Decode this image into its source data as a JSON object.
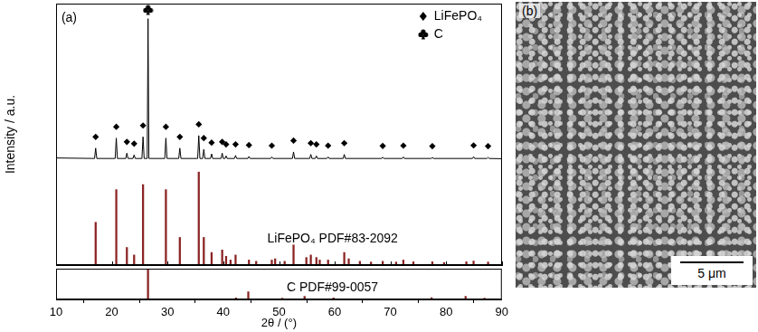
{
  "chart_data": [
    {
      "type": "line",
      "y_label": "Intensity / a.u.",
      "xlim": [
        10,
        90
      ],
      "xticks": [
        10,
        20,
        30,
        40,
        50,
        60,
        70,
        80,
        90
      ],
      "ylim": [
        0,
        104
      ],
      "tick_labels": false,
      "grid": false,
      "legend": "upper right",
      "annotations": [
        "(a)",
        "LiFePO₄ PDF#83-2092"
      ],
      "series": [
        {
          "type": "line",
          "color": "#000000",
          "x": [
            10,
            16.9,
            17.1,
            17.3,
            20.6,
            20.8,
            21.0,
            22.5,
            22.7,
            22.9,
            23.8,
            24.0,
            24.2,
            25.4,
            25.6,
            25.8,
            26.35,
            26.5,
            26.65,
            29.5,
            29.7,
            29.9,
            32.0,
            32.2,
            32.4,
            35.4,
            35.6,
            35.8,
            36.3,
            36.5,
            36.7,
            37.7,
            37.9,
            38.1,
            39.6,
            39.8,
            40.0,
            40.3,
            40.5,
            40.7,
            42.0,
            42.2,
            42.4,
            44.4,
            44.6,
            44.8,
            48.5,
            48.7,
            48.9,
            52.4,
            52.6,
            52.8,
            55.5,
            55.7,
            55.9,
            56.5,
            56.7,
            56.9,
            58.6,
            58.8,
            59.0,
            61.5,
            61.7,
            61.9,
            68.4,
            68.6,
            68.8,
            72.1,
            72.3,
            72.5,
            77.3,
            77.5,
            77.7,
            84.7,
            84.9,
            85.1,
            87.3,
            87.5,
            87.7,
            90
          ],
          "values": [
            42.6,
            42.4,
            46.5,
            42.4,
            42.4,
            50.5,
            42.4,
            42.4,
            44.5,
            42.4,
            42.4,
            43.8,
            42.4,
            42.4,
            51,
            42.4,
            42.4,
            98,
            42.4,
            42.4,
            50.5,
            42.4,
            42.4,
            46.5,
            42.4,
            42.4,
            51.5,
            42.4,
            42.4,
            46,
            42.4,
            42.4,
            44.2,
            42.4,
            42.4,
            44.5,
            42.4,
            42.4,
            43.4,
            42.4,
            42.4,
            43.6,
            42.4,
            42.4,
            43.2,
            42.4,
            42.4,
            43,
            42.4,
            42.4,
            45,
            42.4,
            42.4,
            44,
            42.4,
            42.4,
            43.4,
            42.4,
            42.4,
            43,
            42.4,
            42.4,
            44,
            42.4,
            42.4,
            42.9,
            42.4,
            42.4,
            43,
            42.4,
            42.4,
            42.8,
            42.4,
            42.4,
            43.1,
            42.4,
            42.4,
            42.8,
            42.4,
            42.3
          ]
        },
        {
          "name": "LiFePO₄",
          "type": "scatter",
          "marker": "diamond",
          "color": "#000000",
          "x": [
            17.1,
            20.8,
            22.7,
            24.0,
            25.6,
            29.7,
            32.2,
            35.6,
            36.5,
            37.9,
            39.8,
            40.5,
            42.2,
            44.6,
            48.7,
            52.6,
            55.7,
            56.7,
            58.8,
            61.7,
            68.6,
            72.3,
            77.5,
            84.9,
            87.5
          ],
          "values": [
            51,
            55,
            49,
            48.3,
            55.5,
            55,
            51,
            56,
            50.5,
            48.7,
            49,
            48,
            48,
            47.7,
            47.5,
            49.5,
            48.5,
            48,
            47.5,
            48.5,
            47.4,
            47.5,
            47.3,
            47.6,
            47.3
          ]
        },
        {
          "name": "C",
          "type": "scatter",
          "marker": "club",
          "color": "#000000",
          "x": [
            26.5
          ],
          "values": [
            101.5
          ]
        },
        {
          "type": "bar",
          "color": "#8b2323",
          "x": [
            17.1,
            20.8,
            22.7,
            24.0,
            25.6,
            29.7,
            32.2,
            35.6,
            36.5,
            37.9,
            39.8,
            40.5,
            41.3,
            42.2,
            44.6,
            45.9,
            48.7,
            49.3,
            51.0,
            52.6,
            54.9,
            55.7,
            56.7,
            57.3,
            58.8,
            61.7,
            62.5,
            64.5,
            66.5,
            68.6,
            71.0,
            72.3,
            74.1,
            77.5,
            79.6,
            83.6,
            84.9,
            87.5
          ],
          "values": [
            17,
            30,
            7,
            4,
            32,
            30,
            11,
            37,
            11,
            5,
            6,
            3.5,
            2,
            4,
            2,
            1.5,
            2,
            2.5,
            1.5,
            8,
            3,
            4,
            3,
            2,
            2,
            5,
            2.5,
            1.5,
            1.2,
            1.5,
            1.2,
            2,
            1.3,
            1.3,
            1,
            1.3,
            1.6,
            1.2
          ]
        }
      ]
    },
    {
      "type": "bar",
      "x_label": "2θ / (°)",
      "xlim": [
        10,
        90
      ],
      "xticks": [
        10,
        20,
        30,
        40,
        50,
        60,
        70,
        80,
        90
      ],
      "ylim": [
        0,
        100
      ],
      "tick_labels": "x",
      "grid": false,
      "annotations": [
        "C PDF#99-0057"
      ],
      "series": [
        {
          "type": "bar",
          "color": "#8b2323",
          "x": [
            26.5,
            42.3,
            44.5,
            50.6,
            54.6,
            59.8,
            77.4,
            83.5,
            86.9
          ],
          "values": [
            97,
            5,
            25,
            4,
            10,
            5,
            6,
            10,
            4
          ]
        }
      ]
    }
  ],
  "image": {
    "label": "(b)",
    "scale_bar": "5 μm"
  }
}
